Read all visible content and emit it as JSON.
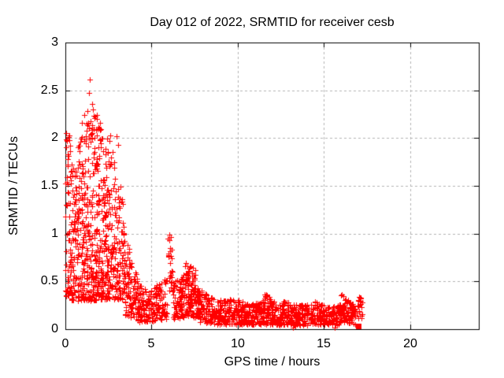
{
  "chart_data": {
    "type": "scatter",
    "title": "Day 012 of 2022, SRMTID for receiver cesb",
    "xlabel": "GPS time / hours",
    "ylabel": "SRMTID / TECUs",
    "xlim": [
      0,
      24
    ],
    "ylim": [
      0,
      3
    ],
    "xticks": [
      0,
      5,
      10,
      15,
      20
    ],
    "yticks": [
      0,
      0.5,
      1,
      1.5,
      2,
      2.5,
      3
    ],
    "grid": true,
    "legend": false,
    "marker": "plus-cross",
    "marker_color": "#ff0000",
    "grid_color": "#b4b4b4",
    "axis_color": "#000000",
    "background_color": "#ffffff",
    "seed": 20220112,
    "cluster_format": "[x_start, x_end, n_points, y_low_at_start, y_low_at_end, y_high_at_start, y_high_at_end, low_bias]",
    "clusters": [
      [
        0.0,
        0.35,
        70,
        0.35,
        0.35,
        2.05,
        2.05,
        1.6
      ],
      [
        0.35,
        1.5,
        260,
        0.3,
        0.3,
        1.75,
        2.3,
        1.5
      ],
      [
        1.5,
        2.6,
        300,
        0.3,
        0.32,
        2.3,
        2.05,
        1.6
      ],
      [
        2.6,
        3.4,
        130,
        0.33,
        0.28,
        2.05,
        1.3,
        1.4
      ],
      [
        3.4,
        4.3,
        130,
        0.15,
        0.08,
        1.05,
        0.45,
        1.3
      ],
      [
        4.3,
        4.9,
        70,
        0.07,
        0.08,
        0.5,
        0.35,
        1.2
      ],
      [
        4.9,
        5.9,
        110,
        0.08,
        0.1,
        0.42,
        0.55,
        1.3
      ],
      [
        5.95,
        6.2,
        26,
        0.4,
        0.42,
        1.02,
        0.95,
        1.0
      ],
      [
        6.2,
        6.85,
        80,
        0.1,
        0.12,
        0.5,
        0.55,
        1.2
      ],
      [
        6.85,
        7.55,
        110,
        0.15,
        0.12,
        0.75,
        0.62,
        1.2
      ],
      [
        7.55,
        8.6,
        130,
        0.07,
        0.06,
        0.45,
        0.33,
        1.3
      ],
      [
        8.6,
        9.6,
        110,
        0.05,
        0.05,
        0.3,
        0.32,
        1.2
      ],
      [
        9.6,
        10.6,
        110,
        0.05,
        0.05,
        0.33,
        0.28,
        1.2
      ],
      [
        10.6,
        11.55,
        100,
        0.05,
        0.05,
        0.25,
        0.3,
        1.2
      ],
      [
        11.55,
        12.15,
        75,
        0.05,
        0.05,
        0.4,
        0.28,
        1.2
      ],
      [
        12.15,
        13.1,
        100,
        0.04,
        0.05,
        0.28,
        0.3,
        1.2
      ],
      [
        13.1,
        14.4,
        130,
        0.04,
        0.04,
        0.26,
        0.28,
        1.2
      ],
      [
        14.4,
        15.1,
        75,
        0.05,
        0.05,
        0.3,
        0.25,
        1.2
      ],
      [
        15.1,
        16.0,
        95,
        0.04,
        0.04,
        0.24,
        0.26,
        1.2
      ],
      [
        16.0,
        16.5,
        55,
        0.05,
        0.05,
        0.38,
        0.3,
        1.1
      ],
      [
        16.5,
        16.85,
        45,
        0.06,
        0.05,
        0.28,
        0.25,
        1.1
      ],
      [
        16.9,
        17.25,
        22,
        0.08,
        0.1,
        0.38,
        0.33,
        1.0
      ]
    ],
    "outlier_points": [
      [
        1.4,
        2.61
      ],
      [
        1.37,
        2.47
      ],
      [
        1.3,
        2.28
      ],
      [
        1.55,
        2.36
      ],
      [
        1.62,
        2.3
      ],
      [
        1.7,
        2.21
      ],
      [
        1.08,
        2.24
      ],
      [
        0.97,
        2.16
      ],
      [
        2.02,
        2.16
      ],
      [
        1.85,
        2.24
      ],
      [
        2.55,
        1.97
      ],
      [
        0.06,
        2.05
      ],
      [
        0.09,
        1.98
      ],
      [
        0.05,
        1.9
      ],
      [
        0.12,
        1.72
      ],
      [
        2.95,
        2.02
      ],
      [
        3.05,
        1.93
      ]
    ],
    "near_zero_points": [
      [
        13.2,
        0.015
      ],
      [
        13.33,
        0.03
      ],
      [
        15.62,
        0.02
      ]
    ],
    "end_square_point": [
      17.0,
      0.03
    ]
  }
}
